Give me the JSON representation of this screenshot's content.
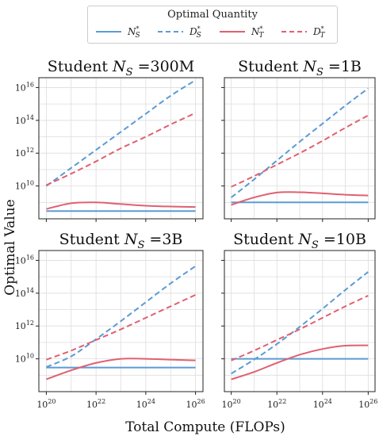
{
  "figure": {
    "ylabel": "Optimal Value",
    "xlabel": "Total Compute (FLOPs)"
  },
  "legend": {
    "title": "Optimal Quantity",
    "items": [
      {
        "label": "N*_S",
        "color": "#5b9bd5",
        "dash": "solid"
      },
      {
        "label": "D*_S",
        "color": "#5b9bd5",
        "dash": "dashed"
      },
      {
        "label": "N*_T",
        "color": "#e06070",
        "dash": "solid"
      },
      {
        "label": "D*_T",
        "color": "#e06070",
        "dash": "dashed"
      }
    ]
  },
  "colors": {
    "student": "#5b9bd5",
    "teacher": "#e06070",
    "grid": "#dddddd"
  },
  "chart_data": [
    {
      "type": "line",
      "title": "Student N_S =300M",
      "x": [
        20,
        21,
        22,
        23,
        24,
        25,
        26
      ],
      "x_ticks": [
        "10^20",
        "10^22",
        "10^24",
        "10^26"
      ],
      "y_ticks": [
        "10^10",
        "10^12",
        "10^14",
        "10^16"
      ],
      "log_scale": {
        "x": true,
        "y": true
      },
      "ylim_log10": [
        8.0,
        16.6
      ],
      "xlim_log10": [
        19.7,
        26.3
      ],
      "grid": true,
      "series": [
        {
          "name": "N*_S",
          "log10_values": [
            8.47,
            8.47,
            8.47,
            8.47,
            8.47,
            8.47,
            8.47
          ]
        },
        {
          "name": "D*_S",
          "log10_values": [
            10.0,
            11.1,
            12.2,
            13.3,
            14.4,
            15.5,
            16.45
          ]
        },
        {
          "name": "N*_T",
          "log10_values": [
            8.6,
            8.95,
            9.0,
            8.9,
            8.8,
            8.75,
            8.72
          ]
        },
        {
          "name": "D*_T",
          "log10_values": [
            10.05,
            10.75,
            11.5,
            12.3,
            13.0,
            13.75,
            14.45
          ]
        }
      ]
    },
    {
      "type": "line",
      "title": "Student N_S =1B",
      "x": [
        20,
        21,
        22,
        23,
        24,
        25,
        26
      ],
      "x_ticks": [
        "10^20",
        "10^22",
        "10^24",
        "10^26"
      ],
      "y_ticks": [
        "10^10",
        "10^12",
        "10^14",
        "10^16"
      ],
      "log_scale": {
        "x": true,
        "y": true
      },
      "ylim_log10": [
        8.0,
        16.6
      ],
      "xlim_log10": [
        19.7,
        26.3
      ],
      "grid": true,
      "series": [
        {
          "name": "N*_S",
          "log10_values": [
            9.0,
            9.0,
            9.0,
            9.0,
            9.0,
            9.0,
            9.0
          ]
        },
        {
          "name": "D*_S",
          "log10_values": [
            9.3,
            10.4,
            11.55,
            12.7,
            13.8,
            14.9,
            15.95
          ]
        },
        {
          "name": "N*_T",
          "log10_values": [
            8.85,
            9.3,
            9.6,
            9.62,
            9.55,
            9.47,
            9.42
          ]
        },
        {
          "name": "D*_T",
          "log10_values": [
            9.95,
            10.6,
            11.3,
            12.0,
            12.75,
            13.55,
            14.3
          ]
        }
      ]
    },
    {
      "type": "line",
      "title": "Student N_S =3B",
      "x": [
        20,
        21,
        22,
        23,
        24,
        25,
        26
      ],
      "x_ticks": [
        "10^20",
        "10^22",
        "10^24",
        "10^26"
      ],
      "y_ticks": [
        "10^10",
        "10^12",
        "10^14",
        "10^16"
      ],
      "log_scale": {
        "x": true,
        "y": true
      },
      "ylim_log10": [
        8.0,
        16.6
      ],
      "xlim_log10": [
        19.7,
        26.3
      ],
      "grid": true,
      "series": [
        {
          "name": "N*_S",
          "log10_values": [
            9.47,
            9.47,
            9.47,
            9.47,
            9.47,
            9.47,
            9.47
          ]
        },
        {
          "name": "D*_S",
          "log10_values": [
            9.5,
            10.15,
            11.2,
            12.3,
            13.45,
            14.6,
            15.65
          ]
        },
        {
          "name": "N*_T",
          "log10_values": [
            8.75,
            9.3,
            9.75,
            10.0,
            10.0,
            9.95,
            9.9
          ]
        },
        {
          "name": "D*_T",
          "log10_values": [
            9.95,
            10.5,
            11.15,
            11.8,
            12.5,
            13.2,
            13.9
          ]
        }
      ]
    },
    {
      "type": "line",
      "title": "Student N_S =10B",
      "x": [
        20,
        21,
        22,
        23,
        24,
        25,
        26
      ],
      "x_ticks": [
        "10^20",
        "10^22",
        "10^24",
        "10^26"
      ],
      "y_ticks": [
        "10^10",
        "10^12",
        "10^14",
        "10^16"
      ],
      "log_scale": {
        "x": true,
        "y": true
      },
      "ylim_log10": [
        8.0,
        16.6
      ],
      "xlim_log10": [
        19.7,
        26.3
      ],
      "grid": true,
      "series": [
        {
          "name": "N*_S",
          "log10_values": [
            10.0,
            10.0,
            10.0,
            10.0,
            10.0,
            10.0,
            10.0
          ]
        },
        {
          "name": "D*_S",
          "log10_values": [
            9.1,
            9.95,
            10.9,
            11.95,
            13.05,
            14.2,
            15.3
          ]
        },
        {
          "name": "N*_T",
          "log10_values": [
            8.75,
            9.2,
            9.75,
            10.25,
            10.6,
            10.8,
            10.82
          ]
        },
        {
          "name": "D*_T",
          "log10_values": [
            9.9,
            10.5,
            11.15,
            11.8,
            12.5,
            13.2,
            13.85
          ]
        }
      ]
    }
  ]
}
